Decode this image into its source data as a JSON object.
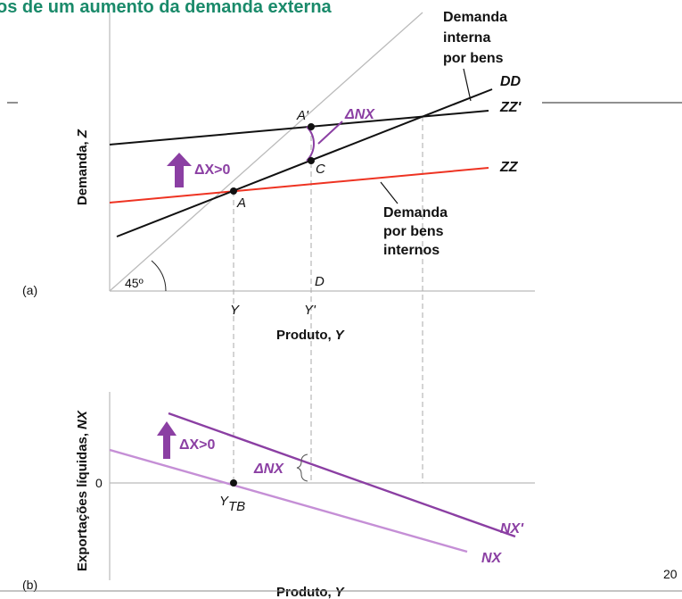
{
  "title": "os de um aumento da demanda externa",
  "page_number": "20",
  "panel_a": {
    "panel_label": "(a)",
    "y_axis_label": "Demanda,",
    "y_axis_var": "Z",
    "x_axis_label": "Produto,",
    "x_axis_var": "Y",
    "angle_label": "45º",
    "annotation_interna": [
      "Demanda",
      "interna",
      "por bens"
    ],
    "annotation_internos": [
      "Demanda",
      "por bens",
      "internos"
    ],
    "line_labels": {
      "dd": "DD",
      "zzp": "ZZ'",
      "zz": "ZZ"
    },
    "point_labels": {
      "a": "A",
      "ap": "A'",
      "c": "C",
      "d": "D"
    },
    "delta_x": "ΔX>0",
    "delta_nx": "ΔNX",
    "ticks": {
      "y": "Y",
      "yp": "Y'"
    }
  },
  "panel_b": {
    "panel_label": "(b)",
    "y_axis_label": "Exportações líquidas,",
    "y_axis_var": "NX",
    "x_axis_label": "Produto,",
    "x_axis_var": "Y",
    "zero_label": "0",
    "delta_x": "ΔX>0",
    "delta_nx": "ΔNX",
    "ytb_main": "Y",
    "ytb_sub": "TB",
    "line_labels": {
      "nxp": "NX'",
      "nx": "NX"
    }
  },
  "colors": {
    "title": "#1a8a6a",
    "zz_line": "#ee3322",
    "purple": "#8b3fa3",
    "purple_light": "#c58fd6",
    "diagonal": "#bbbbbb",
    "guide": "#aaaaaa"
  }
}
